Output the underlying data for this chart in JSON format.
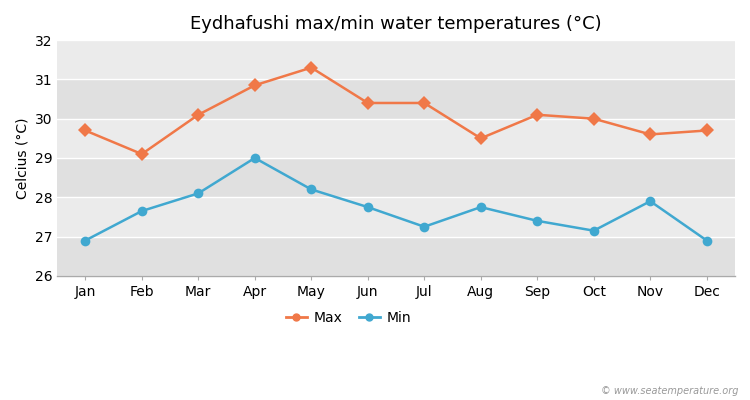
{
  "title": "Eydhafushi max/min water temperatures (°C)",
  "ylabel": "Celcius (°C)",
  "months": [
    "Jan",
    "Feb",
    "Mar",
    "Apr",
    "May",
    "Jun",
    "Jul",
    "Aug",
    "Sep",
    "Oct",
    "Nov",
    "Dec"
  ],
  "max_temps": [
    29.7,
    29.1,
    30.1,
    30.85,
    31.3,
    30.4,
    30.4,
    29.5,
    30.1,
    30.0,
    29.6,
    29.7
  ],
  "min_temps": [
    26.9,
    27.65,
    28.1,
    29.0,
    28.2,
    27.75,
    27.25,
    27.75,
    27.4,
    27.15,
    27.9,
    26.9
  ],
  "max_color": "#f07848",
  "min_color": "#40a8d0",
  "fig_bg_color": "#ffffff",
  "plot_bg_color": "#ebebeb",
  "band_colors": [
    "#e0e0e0",
    "#ebebeb"
  ],
  "ylim": [
    26,
    32
  ],
  "yticks": [
    26,
    27,
    28,
    29,
    30,
    31,
    32
  ],
  "grid_color": "#ffffff",
  "legend_labels": [
    "Max",
    "Min"
  ],
  "watermark": "© www.seatemperature.org",
  "title_fontsize": 13,
  "axis_fontsize": 10,
  "tick_fontsize": 10,
  "marker_size": 7,
  "line_width": 1.8
}
